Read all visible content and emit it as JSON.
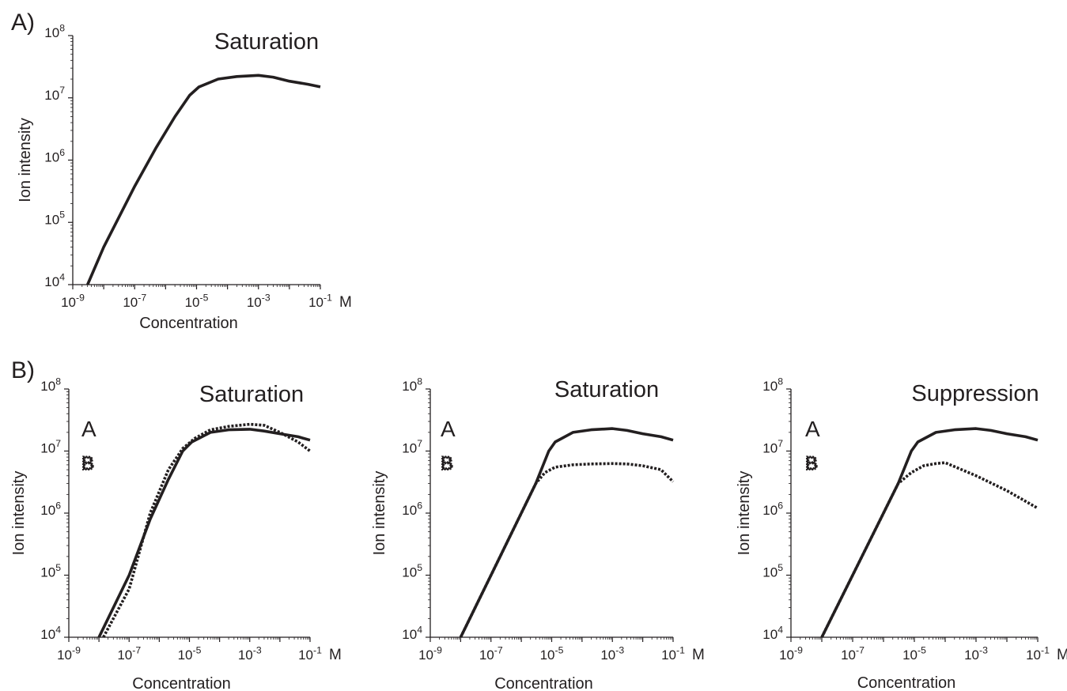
{
  "panels": {
    "a_label": "A)",
    "b_label": "B)"
  },
  "chart_data": [
    {
      "type": "line",
      "title": "Saturation",
      "xlabel": "Concentration",
      "ylabel": "Ion intensity",
      "x_unit": "M",
      "x_scale": "log",
      "y_scale": "log",
      "xlim": [
        1e-09,
        0.1
      ],
      "ylim": [
        10000,
        100000000
      ],
      "x_ticks": [
        "10^-9",
        "10^-7",
        "10^-5",
        "10^-3",
        "10^-1"
      ],
      "y_ticks": [
        "10^4",
        "10^5",
        "10^6",
        "10^7",
        "10^8"
      ],
      "legend": [],
      "series": [
        {
          "style": "solid",
          "x": [
            3e-09,
            1e-08,
            1e-07,
            5e-07,
            2e-06,
            6e-06,
            1.2e-05,
            5e-05,
            0.0002,
            0.001,
            0.003,
            0.01,
            0.04,
            0.1
          ],
          "y": [
            10000,
            40000,
            380000,
            1600000,
            5000000,
            11000000,
            15000000,
            20000000,
            22000000,
            23000000,
            21500000,
            18500000,
            16500000,
            15000000
          ]
        }
      ],
      "color": "#231f20"
    },
    {
      "type": "line",
      "title": "Saturation",
      "xlabel": "Concentration",
      "ylabel": "Ion intensity",
      "x_unit": "M",
      "x_scale": "log",
      "y_scale": "log",
      "xlim": [
        1e-09,
        0.1
      ],
      "ylim": [
        10000,
        100000000
      ],
      "x_ticks": [
        "10^-9",
        "10^-7",
        "10^-5",
        "10^-3",
        "10^-1"
      ],
      "y_ticks": [
        "10^4",
        "10^5",
        "10^6",
        "10^7",
        "10^8"
      ],
      "legend": [
        {
          "name": "A",
          "style": "solid"
        },
        {
          "name": "B",
          "style": "dotted"
        }
      ],
      "series": [
        {
          "name": "A",
          "style": "solid",
          "x": [
            1e-08,
            1e-07,
            5e-07,
            2e-06,
            6e-06,
            1.2e-05,
            5e-05,
            0.0002,
            0.001,
            0.003,
            0.01,
            0.04,
            0.1
          ],
          "y": [
            10000,
            100000,
            800000,
            3500000,
            10000000,
            14000000,
            20000000,
            22000000,
            22500000,
            21000000,
            19000000,
            17000000,
            15000000
          ]
        },
        {
          "name": "B",
          "style": "dotted",
          "x": [
            1.4e-08,
            1e-07,
            5e-07,
            2e-06,
            6e-06,
            1.5e-05,
            5e-05,
            0.0002,
            0.001,
            0.003,
            0.01,
            0.04,
            0.1
          ],
          "y": [
            10000,
            60000,
            1000000,
            5000000,
            11000000,
            16000000,
            22000000,
            25000000,
            27000000,
            26000000,
            20000000,
            14000000,
            10000000
          ]
        }
      ],
      "color": "#231f20"
    },
    {
      "type": "line",
      "title": "Saturation",
      "xlabel": "Concentration",
      "ylabel": "Ion intensity",
      "x_unit": "M",
      "x_scale": "log",
      "y_scale": "log",
      "xlim": [
        1e-09,
        0.1
      ],
      "ylim": [
        10000,
        100000000
      ],
      "x_ticks": [
        "10^-9",
        "10^-7",
        "10^-5",
        "10^-3",
        "10^-1"
      ],
      "y_ticks": [
        "10^4",
        "10^5",
        "10^6",
        "10^7",
        "10^8"
      ],
      "legend": [
        {
          "name": "A",
          "style": "solid"
        },
        {
          "name": "B",
          "style": "dotted"
        }
      ],
      "series": [
        {
          "name": "A",
          "style": "solid",
          "x": [
            1e-08,
            1e-07,
            1e-06,
            3e-06,
            8e-06,
            1.3e-05,
            5e-05,
            0.0002,
            0.001,
            0.003,
            0.01,
            0.04,
            0.1
          ],
          "y": [
            10000,
            100000,
            1000000,
            3000000,
            10000000,
            14000000,
            20000000,
            22000000,
            23000000,
            21500000,
            19000000,
            17000000,
            15000000
          ]
        },
        {
          "name": "B",
          "style": "dotted",
          "x": [
            1e-08,
            1e-07,
            1e-06,
            3e-06,
            6e-06,
            1.3e-05,
            5e-05,
            0.0002,
            0.001,
            0.003,
            0.01,
            0.04,
            0.1
          ],
          "y": [
            10000,
            100000,
            1000000,
            3000000,
            4500000,
            5500000,
            6000000,
            6200000,
            6300000,
            6200000,
            5800000,
            5000000,
            3200000
          ]
        }
      ],
      "color": "#231f20"
    },
    {
      "type": "line",
      "title": "Suppression",
      "xlabel": "Concentration",
      "ylabel": "Ion intensity",
      "x_unit": "M",
      "x_scale": "log",
      "y_scale": "log",
      "xlim": [
        1e-09,
        0.1
      ],
      "ylim": [
        10000,
        100000000
      ],
      "x_ticks": [
        "10^-9",
        "10^-7",
        "10^-5",
        "10^-3",
        "10^-1"
      ],
      "y_ticks": [
        "10^4",
        "10^5",
        "10^6",
        "10^7",
        "10^8"
      ],
      "legend": [
        {
          "name": "A",
          "style": "solid"
        },
        {
          "name": "B",
          "style": "dotted"
        }
      ],
      "series": [
        {
          "name": "A",
          "style": "solid",
          "x": [
            1e-08,
            1e-07,
            1e-06,
            3e-06,
            8e-06,
            1.3e-05,
            5e-05,
            0.0002,
            0.001,
            0.003,
            0.01,
            0.04,
            0.1
          ],
          "y": [
            10000,
            100000,
            1000000,
            3000000,
            10000000,
            14000000,
            20000000,
            22000000,
            23000000,
            21500000,
            19000000,
            17000000,
            15000000
          ]
        },
        {
          "name": "B",
          "style": "dotted",
          "x": [
            1e-08,
            1e-07,
            1e-06,
            3e-06,
            8e-06,
            2e-05,
            5e-05,
            0.0001,
            0.001,
            0.01,
            0.1
          ],
          "y": [
            10000,
            100000,
            1000000,
            3000000,
            4500000,
            5800000,
            6300000,
            6500000,
            4000000,
            2300000,
            1200000
          ]
        }
      ],
      "color": "#231f20"
    }
  ]
}
